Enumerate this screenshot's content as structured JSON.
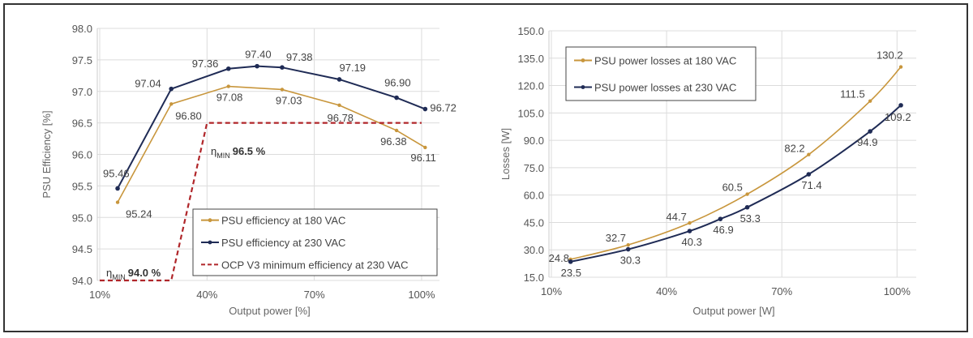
{
  "colors": {
    "s180": "#c8963c",
    "s230": "#1f2b55",
    "ocp": "#b0262a",
    "grid": "#dcdcdc"
  },
  "chart_data": [
    {
      "type": "line",
      "xlabel": "Output power [%]",
      "ylabel": "PSU Efficiency [%]",
      "xlim": [
        10,
        105
      ],
      "ylim": [
        94.0,
        98.0
      ],
      "xticks": [
        10,
        40,
        70,
        100
      ],
      "xtick_labels": [
        "10%",
        "40%",
        "70%",
        "100%"
      ],
      "yticks": [
        "94.0",
        "94.5",
        "95.0",
        "95.5",
        "96.0",
        "96.5",
        "97.0",
        "97.5",
        "98.0"
      ],
      "grid": true,
      "legend_placement": "bottom-right",
      "series": [
        {
          "name": "PSU efficiency at 180 VAC",
          "x": [
            15,
            30,
            46,
            61,
            77,
            93,
            101
          ],
          "values": [
            95.24,
            96.8,
            97.08,
            97.03,
            96.78,
            96.38,
            96.11
          ],
          "labels": [
            "95.24",
            "96.80",
            "97.08",
            "97.03",
            "96.78",
            "96.38",
            "96.11"
          ]
        },
        {
          "name": "PSU efficiency at 230 VAC",
          "x": [
            15,
            30,
            46,
            54,
            61,
            77,
            93,
            101
          ],
          "values": [
            95.46,
            97.04,
            97.36,
            97.4,
            97.38,
            97.19,
            96.9,
            96.72
          ],
          "labels": [
            "95.46",
            "97.04",
            "97.36",
            "97.40",
            "97.38",
            "97.19",
            "96.90",
            "96.72"
          ]
        },
        {
          "name": "OCP V3 minimum efficiency at 230 VAC",
          "x": [
            10,
            30,
            40,
            100
          ],
          "values": [
            94.0,
            94.0,
            96.5,
            96.5
          ]
        }
      ],
      "annotations": [
        {
          "symbol": "η",
          "subscript": "MIN",
          "text": "94.0 %"
        },
        {
          "symbol": "η",
          "subscript": "MIN",
          "text": "96.5 %"
        }
      ]
    },
    {
      "type": "line",
      "xlabel": "Output power [W]",
      "ylabel": "Losses [W]",
      "xlim": [
        10,
        105
      ],
      "ylim": [
        15.0,
        150.0
      ],
      "xticks": [
        10,
        40,
        70,
        100
      ],
      "xtick_labels": [
        "10%",
        "40%",
        "70%",
        "100%"
      ],
      "yticks": [
        "15.0",
        "30.0",
        "45.0",
        "60.0",
        "75.0",
        "90.0",
        "105.0",
        "120.0",
        "135.0",
        "150.0"
      ],
      "grid": true,
      "legend_placement": "top-left",
      "series": [
        {
          "name": "PSU power losses at 180 VAC",
          "x": [
            15,
            30,
            46,
            61,
            77,
            93,
            101
          ],
          "values": [
            24.8,
            32.7,
            44.7,
            60.5,
            82.2,
            111.5,
            130.2
          ],
          "labels": [
            "24.8",
            "32.7",
            "44.7",
            "60.5",
            "82.2",
            "111.5",
            "130.2"
          ]
        },
        {
          "name": "PSU power losses at 230 VAC",
          "x": [
            15,
            30,
            46,
            54,
            61,
            77,
            93,
            101
          ],
          "values": [
            23.5,
            30.3,
            40.3,
            46.9,
            53.3,
            71.4,
            94.9,
            109.2
          ],
          "labels": [
            "23.5",
            "30.3",
            "40.3",
            "46.9",
            "53.3",
            "71.4",
            "94.9",
            "109.2"
          ]
        }
      ]
    }
  ]
}
